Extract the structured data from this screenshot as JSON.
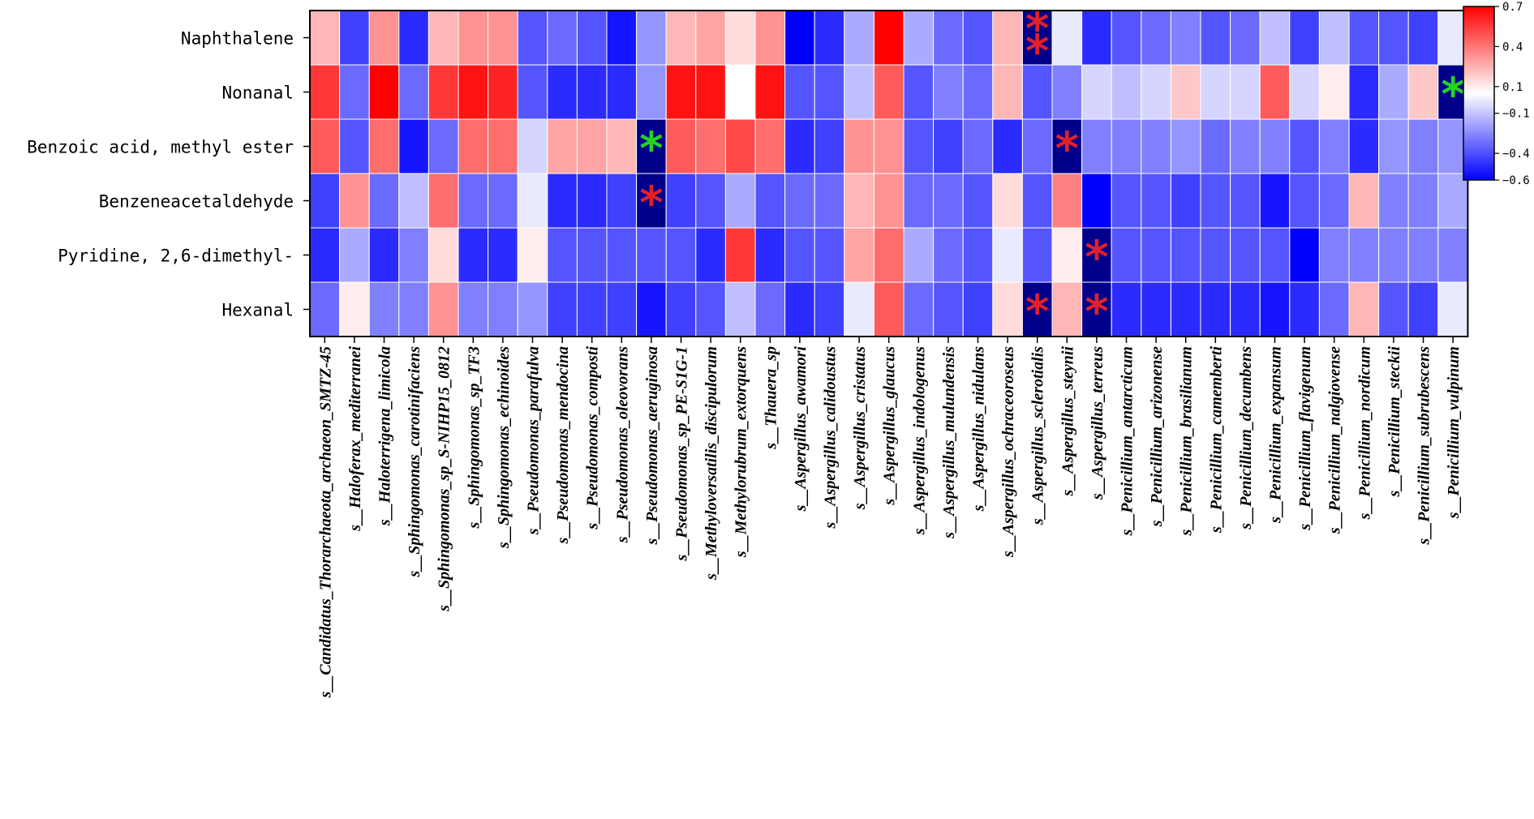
{
  "chart_data": {
    "type": "heatmap",
    "title": "",
    "xlabel": "",
    "ylabel": "",
    "rows": [
      "Naphthalene",
      "Nonanal",
      "Benzoic acid, methyl ester",
      "Benzeneacetaldehyde",
      "Pyridine, 2,6-dimethyl-",
      "Hexanal"
    ],
    "columns": [
      "s__Candidatus_Thorarchaeota_archaeon_SMTZ-45",
      "s__Haloferax_mediterranei",
      "s__Haloterrigena_limicola",
      "s__Sphingomonas_carotinifaciens",
      "s__Sphingomonas_sp_S-NIHP15_0812",
      "s__Sphingomonas_sp_TF3",
      "s__Sphingomonas_echinoides",
      "s__Pseudomonas_parafulva",
      "s__Pseudomonas_mendocina",
      "s__Pseudomonas_composti",
      "s__Pseudomonas_oleovorans",
      "s__Pseudomonas_aeruginosa",
      "s__Pseudomonas_sp_PE-S1G-1",
      "s__Methyloversatilis_discipulorum",
      "s__Methylorubrum_extorquens",
      "s__Thauera_sp",
      "s__Aspergillus_awamori",
      "s__Aspergillus_calidoustus",
      "s__Aspergillus_cristatus",
      "s__Aspergillus_glaucus",
      "s__Aspergillus_indologenus",
      "s__Aspergillus_mulundensis",
      "s__Aspergillus_nidulans",
      "s__Aspergillus_ochraceoroseus",
      "s__Aspergillus_sclerotialis",
      "s__Aspergillus_steynii",
      "s__Aspergillus_terreus",
      "s__Penicillium_antarcticum",
      "s__Penicillium_arizonense",
      "s__Penicillium_brasilianum",
      "s__Penicillium_camemberti",
      "s__Penicillium_decumbens",
      "s__Penicillium_expansum",
      "s__Penicillium_flavigenum",
      "s__Penicillium_nalgiovense",
      "s__Penicillium_nordicum",
      "s__Penicillium_steckii",
      "s__Penicillium_subrubescens",
      "s__Penicillium_vulpinum"
    ],
    "values": [
      [
        0.2,
        -0.45,
        0.3,
        -0.5,
        0.2,
        0.3,
        0.3,
        -0.4,
        -0.35,
        -0.4,
        -0.55,
        -0.25,
        0.2,
        0.25,
        0.1,
        0.3,
        -0.6,
        -0.5,
        -0.2,
        0.7,
        -0.2,
        -0.35,
        -0.4,
        0.2,
        -0.7,
        -0.05,
        -0.5,
        -0.4,
        -0.35,
        -0.3,
        -0.4,
        -0.35,
        -0.15,
        -0.45,
        -0.15,
        -0.4,
        -0.4,
        -0.45,
        -0.05
      ],
      [
        0.55,
        -0.35,
        0.7,
        -0.35,
        0.55,
        0.65,
        0.6,
        -0.4,
        -0.5,
        -0.5,
        -0.5,
        -0.25,
        0.65,
        0.65,
        0.0,
        0.65,
        -0.4,
        -0.4,
        -0.15,
        0.45,
        -0.4,
        -0.3,
        -0.35,
        0.2,
        -0.4,
        -0.3,
        -0.1,
        -0.15,
        -0.1,
        0.15,
        -0.1,
        -0.1,
        0.45,
        -0.1,
        0.05,
        -0.5,
        -0.2,
        0.15,
        -0.7
      ],
      [
        0.45,
        -0.4,
        0.4,
        -0.55,
        -0.35,
        0.4,
        0.4,
        -0.1,
        0.25,
        0.25,
        0.2,
        -0.7,
        0.45,
        0.4,
        0.5,
        0.4,
        -0.5,
        -0.45,
        0.3,
        0.3,
        -0.4,
        -0.45,
        -0.35,
        -0.5,
        -0.35,
        -0.7,
        -0.3,
        -0.3,
        -0.3,
        -0.25,
        -0.35,
        -0.3,
        -0.3,
        -0.4,
        -0.3,
        -0.5,
        -0.25,
        -0.3,
        -0.25
      ],
      [
        -0.45,
        0.3,
        -0.35,
        -0.15,
        0.4,
        -0.35,
        -0.35,
        -0.05,
        -0.5,
        -0.5,
        -0.45,
        -0.7,
        -0.45,
        -0.4,
        -0.2,
        -0.4,
        -0.35,
        -0.35,
        0.2,
        0.3,
        -0.35,
        -0.35,
        -0.4,
        0.1,
        -0.4,
        0.35,
        -0.6,
        -0.4,
        -0.4,
        -0.45,
        -0.4,
        -0.4,
        -0.55,
        -0.4,
        -0.35,
        0.2,
        -0.3,
        -0.3,
        -0.2
      ],
      [
        -0.5,
        -0.2,
        -0.5,
        -0.3,
        0.1,
        -0.5,
        -0.5,
        0.05,
        -0.4,
        -0.4,
        -0.4,
        -0.4,
        -0.4,
        -0.5,
        0.55,
        -0.5,
        -0.4,
        -0.4,
        0.25,
        0.4,
        -0.2,
        -0.35,
        -0.4,
        -0.05,
        -0.4,
        0.05,
        -0.7,
        -0.4,
        -0.4,
        -0.4,
        -0.4,
        -0.4,
        -0.4,
        -0.6,
        -0.3,
        -0.3,
        -0.3,
        -0.3,
        -0.3
      ],
      [
        -0.35,
        0.05,
        -0.3,
        -0.3,
        0.3,
        -0.3,
        -0.3,
        -0.25,
        -0.45,
        -0.45,
        -0.45,
        -0.55,
        -0.45,
        -0.4,
        -0.15,
        -0.35,
        -0.5,
        -0.45,
        -0.05,
        0.45,
        -0.35,
        -0.4,
        -0.45,
        0.1,
        -0.7,
        0.2,
        -0.7,
        -0.5,
        -0.5,
        -0.5,
        -0.5,
        -0.5,
        -0.55,
        -0.5,
        -0.35,
        0.2,
        -0.4,
        -0.45,
        -0.05
      ]
    ],
    "markers": [
      {
        "row": 0,
        "col": 24,
        "symbol": "*",
        "color": "#e0202a"
      },
      {
        "row": 0,
        "col": 24,
        "symbol": "*",
        "color": "#e0202a"
      },
      {
        "row": 1,
        "col": 38,
        "symbol": "*",
        "color": "#22d422"
      },
      {
        "row": 2,
        "col": 11,
        "symbol": "*",
        "color": "#22d422"
      },
      {
        "row": 2,
        "col": 25,
        "symbol": "*",
        "color": "#e0202a"
      },
      {
        "row": 3,
        "col": 11,
        "symbol": "*",
        "color": "#e0202a"
      },
      {
        "row": 4,
        "col": 26,
        "symbol": "*",
        "color": "#e0202a"
      },
      {
        "row": 5,
        "col": 24,
        "symbol": "*",
        "color": "#e0202a"
      },
      {
        "row": 5,
        "col": 26,
        "symbol": "*",
        "color": "#e0202a"
      }
    ],
    "colorscale": {
      "min": -0.6,
      "max": 0.7,
      "ticks": [
        "0.7",
        "0.4",
        "0.1",
        "−0.1",
        "−0.4",
        "−0.6"
      ],
      "tick_values": [
        0.7,
        0.4,
        0.1,
        -0.1,
        -0.4,
        -0.6
      ],
      "low_color": "#0000ff",
      "mid_color": "#ffffff",
      "high_color": "#ff0000",
      "extreme_low_color": "#00008b"
    },
    "legend_position": "top-right"
  }
}
